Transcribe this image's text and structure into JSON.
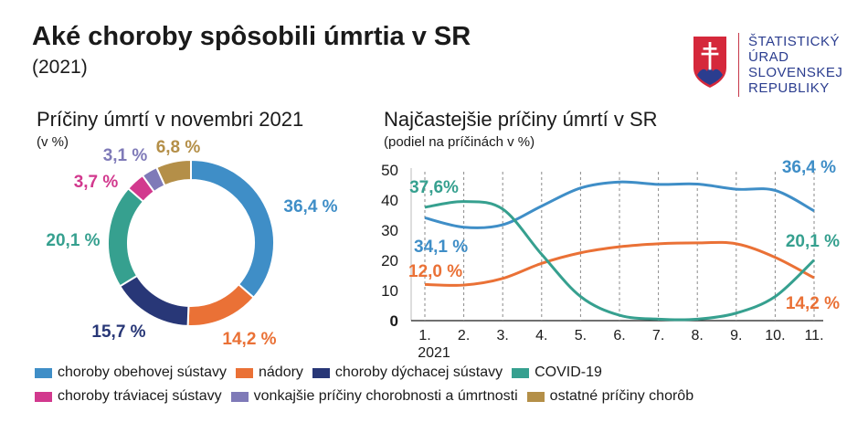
{
  "header": {
    "title": "Aké choroby spôsobili úmrtia v SR",
    "subtitle": "(2021)"
  },
  "logo": {
    "lines": [
      "ŠTATISTICKÝ",
      "ÚRAD",
      "SLOVENSKEJ",
      "REPUBLIKY"
    ],
    "text_color": "#2b3d8f",
    "emblem": "slovak-coat-of-arms-icon"
  },
  "colors": {
    "circulatory": "#3f8ec7",
    "tumors": "#ea7136",
    "respiratory": "#283777",
    "covid": "#36a08f",
    "digestive": "#d2398e",
    "external": "#7f7ab8",
    "other": "#b48f48"
  },
  "chart_data": [
    {
      "type": "pie",
      "donut": true,
      "title": "Príčiny úmrtí v novembri 2021",
      "unit": "(v %)",
      "slices": [
        {
          "key": "circulatory",
          "value": 36.4,
          "label": "36,4 %"
        },
        {
          "key": "tumors",
          "value": 14.2,
          "label": "14,2 %"
        },
        {
          "key": "respiratory",
          "value": 15.7,
          "label": "15,7 %"
        },
        {
          "key": "covid",
          "value": 20.1,
          "label": "20,1 %"
        },
        {
          "key": "digestive",
          "value": 3.7,
          "label": "3,7 %"
        },
        {
          "key": "external",
          "value": 3.1,
          "label": "3,1 %"
        },
        {
          "key": "other",
          "value": 6.8,
          "label": "6,8 %"
        }
      ]
    },
    {
      "type": "line",
      "title": "Najčastejšie príčiny úmrtí v SR",
      "unit": "(podiel na príčinách v %)",
      "categories": [
        "1.",
        "2.",
        "3.",
        "4.",
        "5.",
        "6.",
        "7.",
        "8.",
        "9.",
        "10.",
        "11."
      ],
      "x_year_label": "2021",
      "ylim": [
        0,
        50
      ],
      "yticks": [
        "0",
        "10",
        "20",
        "30",
        "40",
        "50"
      ],
      "series": [
        {
          "key": "circulatory",
          "values": [
            34.1,
            31.0,
            31.8,
            38.0,
            44.0,
            46.0,
            45.2,
            45.3,
            43.6,
            43.2,
            36.4
          ]
        },
        {
          "key": "tumors",
          "values": [
            12.0,
            11.8,
            14.0,
            19.0,
            22.5,
            24.5,
            25.5,
            25.8,
            25.5,
            21.0,
            14.2
          ]
        },
        {
          "key": "covid",
          "values": [
            37.6,
            39.5,
            37.0,
            22.0,
            8.0,
            1.8,
            0.5,
            0.5,
            2.5,
            8.0,
            20.1
          ]
        }
      ],
      "annotations": [
        {
          "series": "covid",
          "text": "37,6%"
        },
        {
          "series": "circulatory",
          "text": "34,1 %"
        },
        {
          "series": "tumors",
          "text": "12,0 %"
        },
        {
          "series": "circulatory",
          "text": "36,4 %"
        },
        {
          "series": "covid",
          "text": "20,1 %"
        },
        {
          "series": "tumors",
          "text": "14,2 %"
        }
      ]
    }
  ],
  "legend": {
    "rows": [
      [
        {
          "key": "circulatory",
          "label": "choroby obehovej sústavy"
        },
        {
          "key": "tumors",
          "label": "nádory"
        },
        {
          "key": "respiratory",
          "label": "choroby dýchacej sústavy"
        },
        {
          "key": "covid",
          "label": "COVID-19"
        }
      ],
      [
        {
          "key": "digestive",
          "label": "choroby tráviacej sústavy"
        },
        {
          "key": "external",
          "label": "vonkajšie príčiny chorobnosti a úmrtnosti"
        },
        {
          "key": "other",
          "label": "ostatné príčiny chorôb"
        }
      ]
    ]
  }
}
